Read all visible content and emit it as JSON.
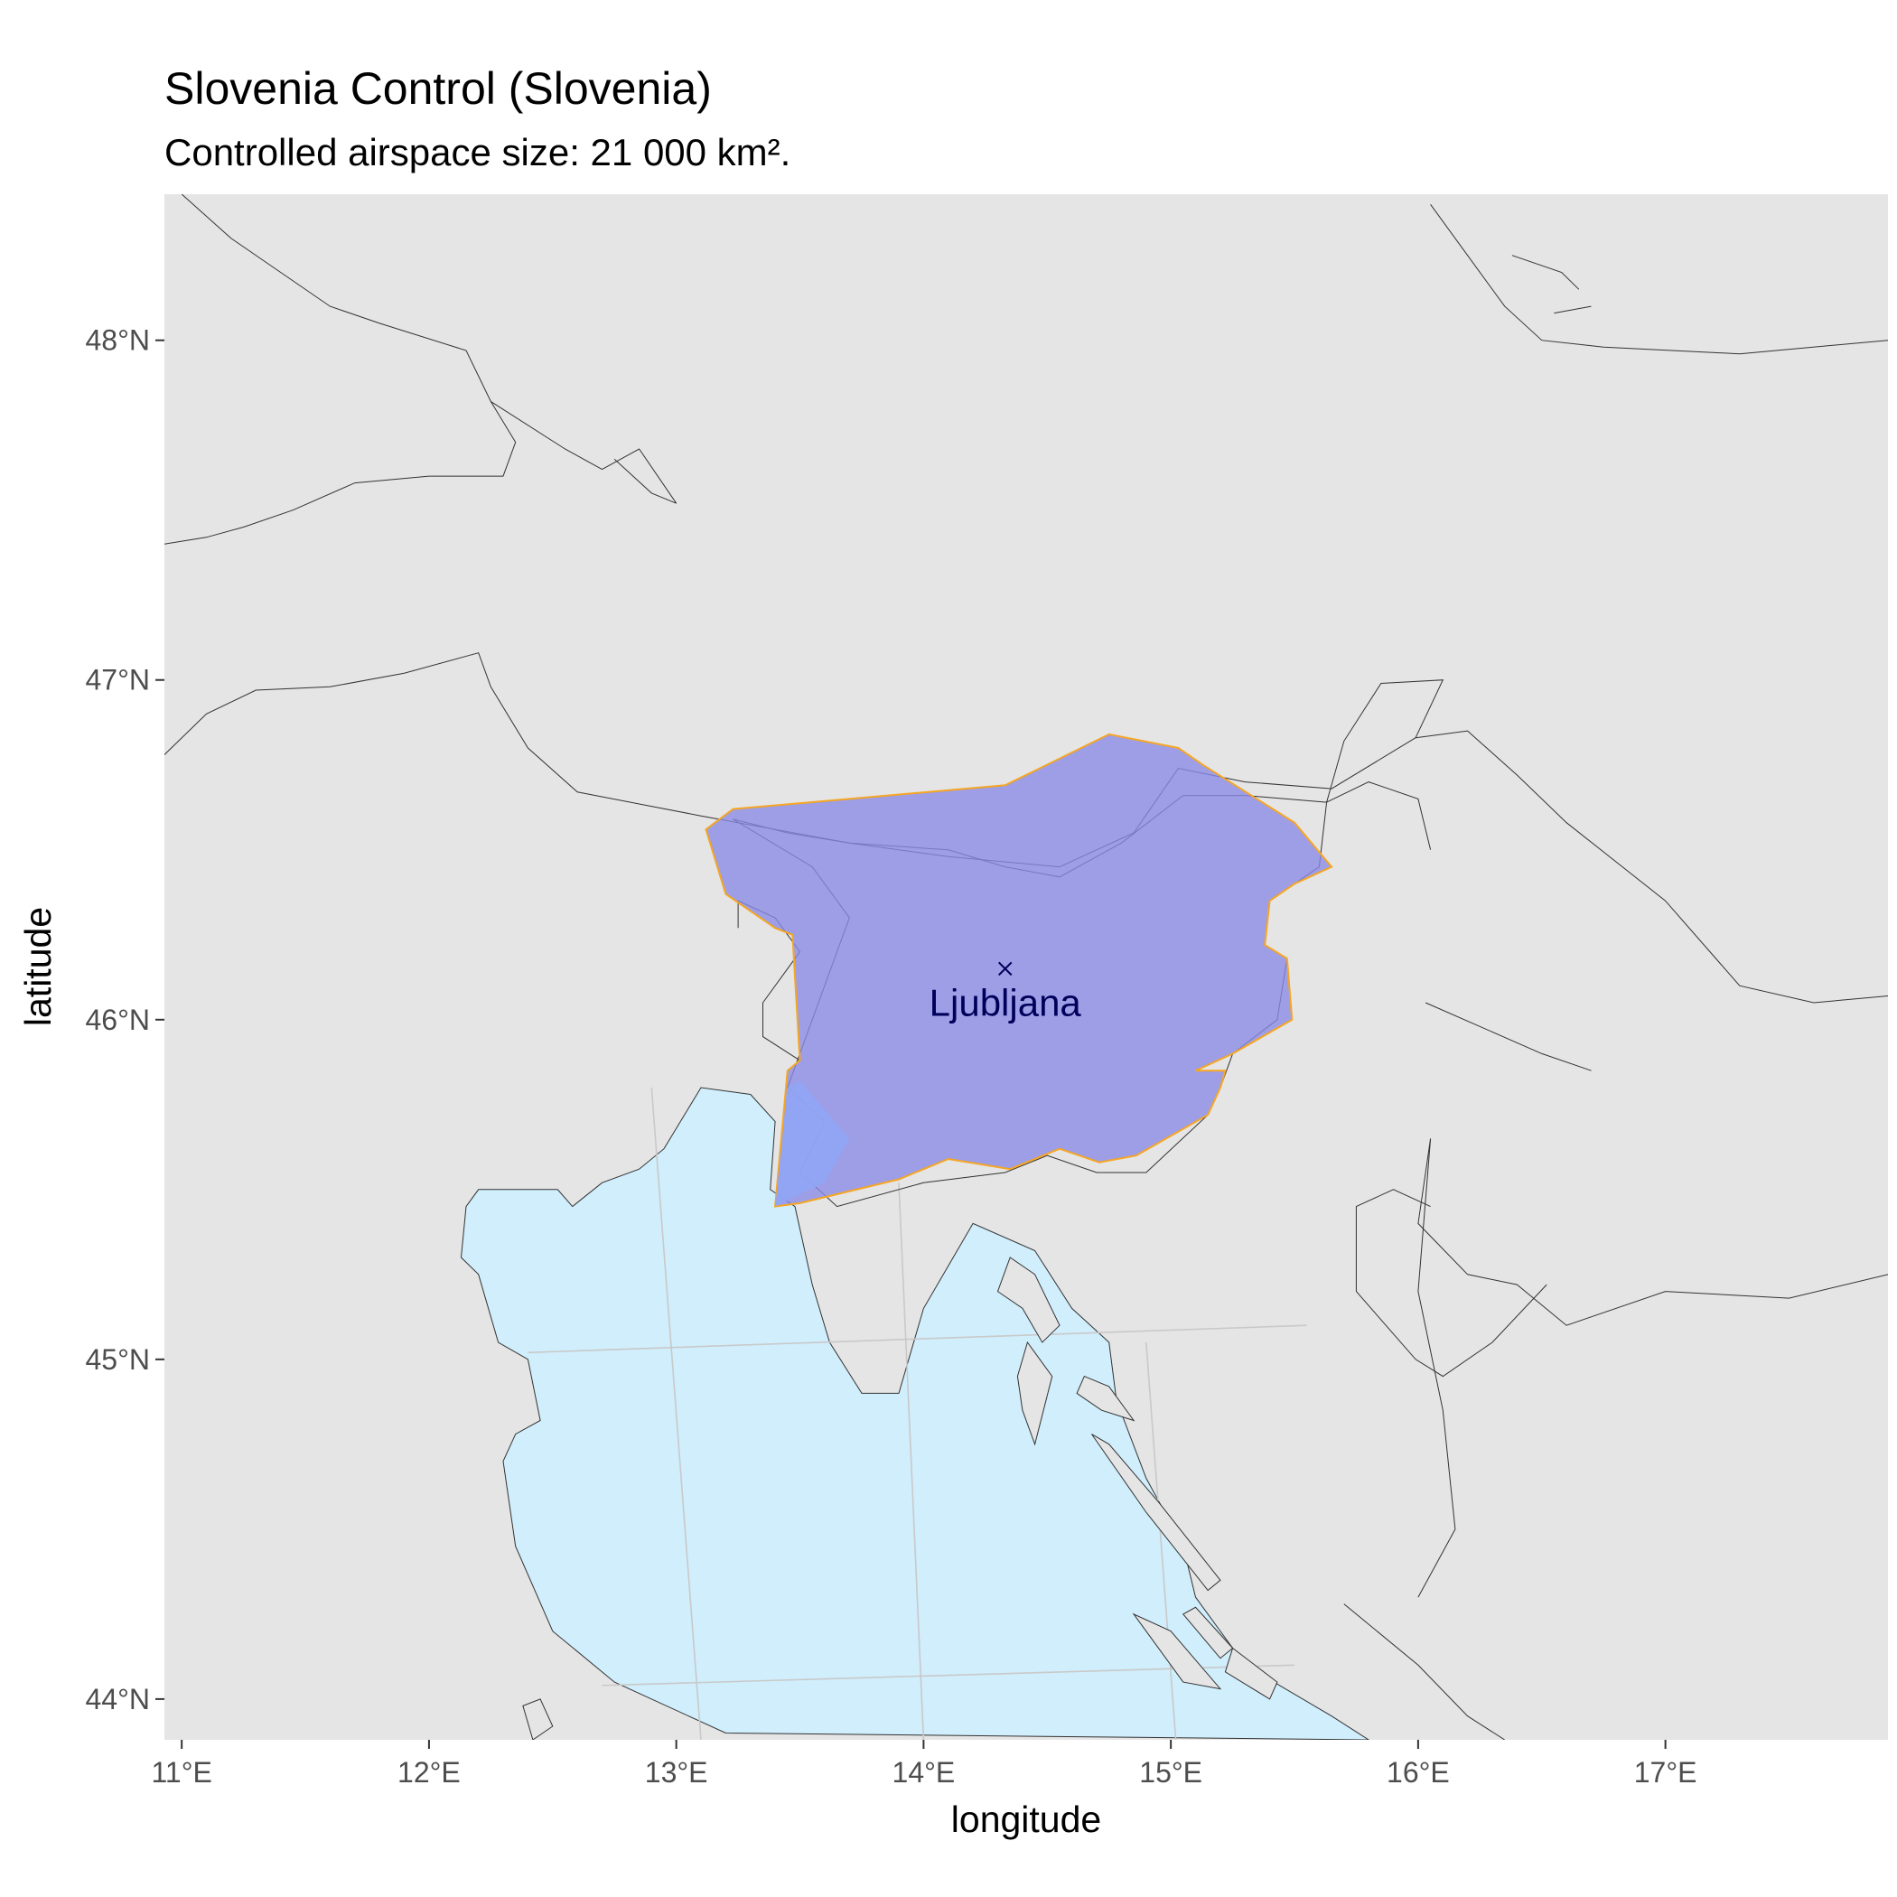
{
  "title": "Slovenia Control (Slovenia)",
  "subtitle": "Controlled airspace size: 21 000 km².",
  "colors": {
    "panel": "#e5e5e5",
    "sea": "#d0eefc",
    "airspace_fill": "#8b8be8",
    "airspace_stroke": "#f5a623",
    "airspace_overlap": "#90a4f5",
    "label": "#00005a"
  },
  "chart_data": {
    "type": "map",
    "xlabel": "longitude",
    "ylabel": "latitude",
    "xlim": [
      10.93,
      17.9
    ],
    "ylim": [
      43.88,
      48.43
    ],
    "x_ticks": [
      {
        "value": 11,
        "label": "11°E"
      },
      {
        "value": 12,
        "label": "12°E"
      },
      {
        "value": 13,
        "label": "13°E"
      },
      {
        "value": 14,
        "label": "14°E"
      },
      {
        "value": 15,
        "label": "15°E"
      },
      {
        "value": 16,
        "label": "16°E"
      },
      {
        "value": 17,
        "label": "17°E"
      }
    ],
    "y_ticks": [
      {
        "value": 44,
        "label": "44°N"
      },
      {
        "value": 45,
        "label": "45°N"
      },
      {
        "value": 46,
        "label": "46°N"
      },
      {
        "value": 47,
        "label": "47°N"
      },
      {
        "value": 48,
        "label": "48°N"
      }
    ],
    "airspace_name": "Slovenia Control",
    "airport": {
      "name": "Ljubljana",
      "lon": 14.33,
      "lat": 46.15
    },
    "airspace_polygon": [
      [
        13.12,
        46.56
      ],
      [
        13.23,
        46.62
      ],
      [
        14.33,
        46.69
      ],
      [
        14.75,
        46.84
      ],
      [
        15.03,
        46.8
      ],
      [
        15.13,
        46.75
      ],
      [
        15.5,
        46.58
      ],
      [
        15.65,
        46.45
      ],
      [
        15.5,
        46.4
      ],
      [
        15.4,
        46.35
      ],
      [
        15.38,
        46.22
      ],
      [
        15.47,
        46.18
      ],
      [
        15.49,
        46.0
      ],
      [
        15.25,
        45.9
      ],
      [
        15.1,
        45.85
      ],
      [
        15.22,
        45.85
      ],
      [
        15.2,
        45.8
      ],
      [
        15.15,
        45.72
      ],
      [
        14.86,
        45.6
      ],
      [
        14.71,
        45.58
      ],
      [
        14.55,
        45.62
      ],
      [
        14.35,
        45.56
      ],
      [
        14.1,
        45.59
      ],
      [
        13.9,
        45.53
      ],
      [
        13.5,
        45.46
      ],
      [
        13.4,
        45.45
      ],
      [
        13.45,
        45.85
      ],
      [
        13.5,
        45.88
      ],
      [
        13.47,
        46.25
      ],
      [
        13.4,
        46.27
      ],
      [
        13.2,
        46.37
      ]
    ],
    "sea_polygon": [
      [
        13.3,
        45.78
      ],
      [
        13.1,
        45.8
      ],
      [
        12.95,
        45.62
      ],
      [
        12.85,
        45.56
      ],
      [
        12.7,
        45.52
      ],
      [
        12.58,
        45.45
      ],
      [
        12.52,
        45.5
      ],
      [
        12.45,
        45.5
      ],
      [
        12.2,
        45.5
      ],
      [
        12.15,
        45.45
      ],
      [
        12.13,
        45.3
      ],
      [
        12.2,
        45.25
      ],
      [
        12.28,
        45.05
      ],
      [
        12.4,
        45.0
      ],
      [
        12.45,
        44.82
      ],
      [
        12.35,
        44.78
      ],
      [
        12.3,
        44.7
      ],
      [
        12.35,
        44.45
      ],
      [
        12.5,
        44.2
      ],
      [
        12.75,
        44.05
      ],
      [
        13.2,
        43.9
      ],
      [
        15.8,
        43.88
      ],
      [
        15.65,
        43.95
      ],
      [
        15.3,
        44.1
      ],
      [
        15.1,
        44.3
      ],
      [
        15.05,
        44.45
      ],
      [
        14.9,
        44.65
      ],
      [
        14.78,
        44.88
      ],
      [
        14.75,
        45.05
      ],
      [
        14.6,
        45.15
      ],
      [
        14.45,
        45.32
      ],
      [
        14.2,
        45.4
      ],
      [
        14.0,
        45.15
      ],
      [
        13.9,
        44.9
      ],
      [
        13.75,
        44.9
      ],
      [
        13.62,
        45.05
      ],
      [
        13.55,
        45.22
      ],
      [
        13.48,
        45.45
      ],
      [
        13.38,
        45.5
      ],
      [
        13.4,
        45.7
      ]
    ],
    "islands": [
      [
        [
          14.35,
          45.3
        ],
        [
          14.45,
          45.25
        ],
        [
          14.55,
          45.1
        ],
        [
          14.48,
          45.05
        ],
        [
          14.4,
          45.15
        ],
        [
          14.3,
          45.2
        ]
      ],
      [
        [
          14.42,
          45.05
        ],
        [
          14.52,
          44.95
        ],
        [
          14.45,
          44.75
        ],
        [
          14.4,
          44.85
        ],
        [
          14.38,
          44.95
        ]
      ],
      [
        [
          14.65,
          44.95
        ],
        [
          14.75,
          44.92
        ],
        [
          14.85,
          44.82
        ],
        [
          14.72,
          44.85
        ],
        [
          14.62,
          44.9
        ]
      ],
      [
        [
          14.68,
          44.78
        ],
        [
          14.9,
          44.55
        ],
        [
          15.15,
          44.32
        ],
        [
          15.2,
          44.35
        ],
        [
          14.95,
          44.58
        ],
        [
          14.75,
          44.75
        ]
      ],
      [
        [
          14.85,
          44.25
        ],
        [
          15.05,
          44.05
        ],
        [
          15.2,
          44.03
        ],
        [
          15.0,
          44.2
        ]
      ],
      [
        [
          15.05,
          44.25
        ],
        [
          15.2,
          44.12
        ],
        [
          15.25,
          44.15
        ],
        [
          15.1,
          44.27
        ]
      ],
      [
        [
          15.25,
          44.15
        ],
        [
          15.43,
          44.05
        ],
        [
          15.4,
          44.0
        ],
        [
          15.22,
          44.08
        ]
      ],
      [
        [
          12.38,
          43.98
        ],
        [
          12.45,
          44.0
        ],
        [
          12.5,
          43.92
        ],
        [
          12.42,
          43.88
        ]
      ]
    ],
    "borders": [
      [
        [
          10.93,
          46.78
        ],
        [
          11.1,
          46.9
        ],
        [
          11.3,
          46.97
        ],
        [
          11.6,
          46.98
        ],
        [
          11.9,
          47.02
        ],
        [
          12.2,
          47.08
        ],
        [
          12.25,
          46.98
        ],
        [
          12.4,
          46.8
        ],
        [
          12.6,
          46.67
        ],
        [
          13.1,
          46.6
        ],
        [
          13.7,
          46.52
        ],
        [
          14.1,
          46.48
        ],
        [
          14.55,
          46.45
        ],
        [
          14.85,
          46.55
        ],
        [
          15.03,
          46.74
        ],
        [
          15.3,
          46.7
        ],
        [
          15.65,
          46.68
        ],
        [
          15.99,
          46.83
        ]
      ],
      [
        [
          15.99,
          46.83
        ],
        [
          16.2,
          46.85
        ],
        [
          16.4,
          46.72
        ],
        [
          16.6,
          46.58
        ],
        [
          17.0,
          46.35
        ],
        [
          17.3,
          46.1
        ],
        [
          17.6,
          46.05
        ],
        [
          17.9,
          46.07
        ]
      ],
      [
        [
          15.99,
          46.83
        ],
        [
          16.1,
          47.0
        ],
        [
          15.85,
          46.99
        ],
        [
          15.7,
          46.82
        ],
        [
          15.63,
          46.64
        ]
      ],
      [
        [
          15.63,
          46.64
        ],
        [
          15.8,
          46.7
        ],
        [
          16.0,
          46.65
        ],
        [
          16.05,
          46.5
        ]
      ],
      [
        [
          13.23,
          46.59
        ],
        [
          13.45,
          46.55
        ],
        [
          13.7,
          46.52
        ],
        [
          14.1,
          46.5
        ],
        [
          14.33,
          46.45
        ],
        [
          14.55,
          46.42
        ],
        [
          14.8,
          46.52
        ],
        [
          15.05,
          46.66
        ],
        [
          15.3,
          46.66
        ],
        [
          15.63,
          46.64
        ]
      ],
      [
        [
          15.63,
          46.64
        ],
        [
          15.6,
          46.45
        ],
        [
          15.4,
          46.35
        ],
        [
          15.38,
          46.22
        ],
        [
          15.47,
          46.18
        ],
        [
          15.43,
          46.0
        ],
        [
          15.25,
          45.9
        ],
        [
          15.2,
          45.8
        ],
        [
          15.15,
          45.72
        ],
        [
          14.9,
          45.55
        ],
        [
          14.7,
          45.55
        ],
        [
          14.5,
          45.6
        ],
        [
          14.33,
          45.55
        ],
        [
          14.0,
          45.52
        ],
        [
          13.65,
          45.45
        ],
        [
          13.5,
          45.55
        ],
        [
          13.6,
          45.7
        ]
      ],
      [
        [
          13.6,
          45.7
        ],
        [
          13.45,
          45.8
        ],
        [
          13.6,
          46.1
        ],
        [
          13.7,
          46.3
        ],
        [
          13.55,
          46.45
        ],
        [
          13.23,
          46.59
        ]
      ],
      [
        [
          13.5,
          45.88
        ],
        [
          13.35,
          45.95
        ],
        [
          13.35,
          46.05
        ],
        [
          13.5,
          46.2
        ],
        [
          13.4,
          46.3
        ],
        [
          13.25,
          46.35
        ],
        [
          13.25,
          46.27
        ]
      ],
      [
        [
          11.0,
          48.43
        ],
        [
          11.2,
          48.3
        ],
        [
          11.6,
          48.1
        ],
        [
          11.8,
          48.05
        ],
        [
          12.15,
          47.97
        ],
        [
          12.25,
          47.82
        ],
        [
          12.35,
          47.7
        ],
        [
          12.3,
          47.6
        ],
        [
          12.0,
          47.6
        ],
        [
          11.7,
          47.58
        ],
        [
          11.45,
          47.5
        ],
        [
          11.25,
          47.45
        ],
        [
          11.1,
          47.42
        ],
        [
          10.93,
          47.4
        ]
      ],
      [
        [
          12.25,
          47.82
        ],
        [
          12.55,
          47.68
        ],
        [
          12.7,
          47.62
        ],
        [
          12.85,
          47.68
        ],
        [
          13.0,
          47.52
        ]
      ],
      [
        [
          13.0,
          47.52
        ],
        [
          12.9,
          47.55
        ],
        [
          12.75,
          47.65
        ]
      ],
      [
        [
          16.05,
          48.4
        ],
        [
          16.2,
          48.25
        ],
        [
          16.35,
          48.1
        ],
        [
          16.5,
          48.0
        ],
        [
          16.75,
          47.98
        ],
        [
          17.3,
          47.96
        ],
        [
          17.9,
          48.0
        ]
      ],
      [
        [
          16.55,
          48.08
        ],
        [
          16.7,
          48.1
        ]
      ],
      [
        [
          16.38,
          48.25
        ],
        [
          16.58,
          48.2
        ],
        [
          16.65,
          48.15
        ]
      ],
      [
        [
          16.03,
          46.05
        ],
        [
          16.5,
          45.9
        ],
        [
          16.7,
          45.85
        ]
      ],
      [
        [
          15.7,
          44.28
        ],
        [
          16.0,
          44.1
        ],
        [
          16.2,
          43.95
        ],
        [
          16.35,
          43.88
        ]
      ],
      [
        [
          16.05,
          45.65
        ],
        [
          16.0,
          45.4
        ],
        [
          16.2,
          45.25
        ],
        [
          16.4,
          45.22
        ],
        [
          16.6,
          45.1
        ],
        [
          17.0,
          45.2
        ],
        [
          17.5,
          45.18
        ],
        [
          17.9,
          45.25
        ]
      ],
      [
        [
          16.05,
          45.65
        ],
        [
          16.0,
          45.2
        ],
        [
          16.1,
          44.85
        ],
        [
          16.15,
          44.5
        ],
        [
          16.0,
          44.3
        ]
      ],
      [
        [
          16.52,
          45.22
        ],
        [
          16.3,
          45.05
        ],
        [
          16.1,
          44.95
        ],
        [
          15.99,
          45.0
        ],
        [
          15.75,
          45.2
        ],
        [
          15.75,
          45.45
        ],
        [
          15.9,
          45.5
        ],
        [
          16.05,
          45.45
        ]
      ]
    ],
    "graticule_lines": [
      [
        [
          12.9,
          45.8
        ],
        [
          13.1,
          43.88
        ]
      ],
      [
        [
          13.9,
          45.52
        ],
        [
          14.0,
          43.88
        ]
      ],
      [
        [
          14.9,
          45.05
        ],
        [
          15.02,
          43.88
        ]
      ],
      [
        [
          12.4,
          45.02
        ],
        [
          15.55,
          45.1
        ]
      ],
      [
        [
          12.7,
          44.04
        ],
        [
          15.5,
          44.1
        ]
      ]
    ]
  }
}
